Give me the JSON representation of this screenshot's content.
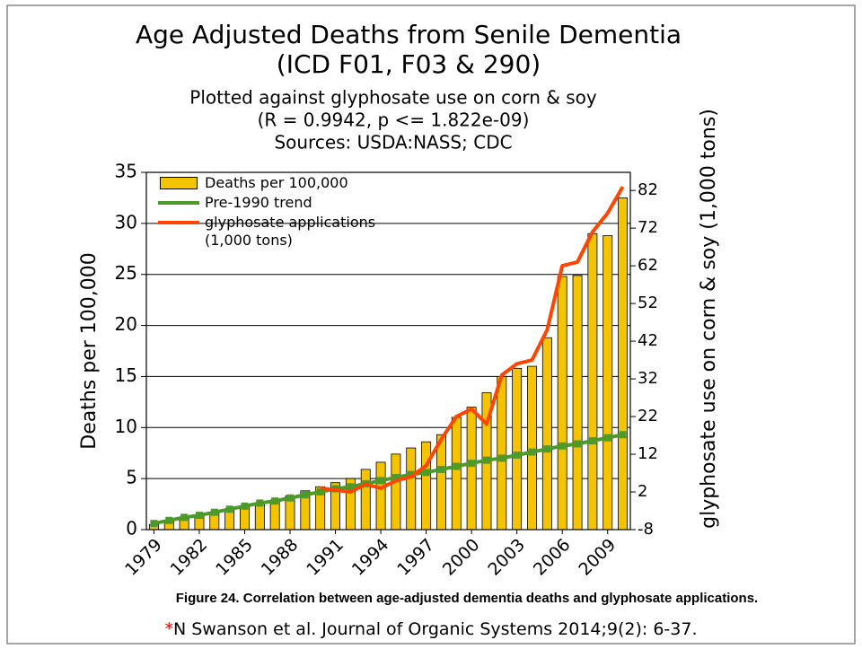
{
  "chart_data": {
    "type": "bar",
    "title": [
      "Age Adjusted Deaths from Senile Dementia",
      "(ICD F01, F03 & 290)"
    ],
    "subtitle": [
      "Plotted against glyphosate use on corn & soy",
      "(R = 0.9942, p <= 1.822e-09)",
      "Sources: USDA:NASS; CDC"
    ],
    "y_label": "Deaths per 100,000",
    "y2_label": "glyphosate use on corn & soy (1,000 tons)",
    "categories": [
      "1979",
      null,
      null,
      "1982",
      null,
      null,
      "1985",
      null,
      null,
      "1988",
      null,
      null,
      "1991",
      null,
      null,
      "1994",
      null,
      null,
      "1997",
      null,
      null,
      "2000",
      null,
      null,
      "2003",
      null,
      null,
      "2006",
      null,
      null,
      "2009",
      null
    ],
    "series": [
      {
        "name": "Deaths per 100,000",
        "type": "bar",
        "color": "#f5c400",
        "values": [
          0.5,
          0.8,
          1.1,
          1.4,
          1.7,
          2.0,
          2.3,
          2.6,
          2.9,
          3.3,
          3.8,
          4.2,
          4.6,
          5.0,
          5.9,
          6.6,
          7.4,
          8.0,
          8.6,
          9.3,
          11.0,
          12.0,
          13.4,
          15.0,
          15.8,
          16.0,
          18.8,
          24.8,
          24.9,
          29.0,
          28.8,
          32.5
        ]
      },
      {
        "name": "Pre-1990 trend",
        "type": "line",
        "color": "#4c9a2a",
        "marker": "square",
        "values": [
          0.6,
          0.9,
          1.2,
          1.4,
          1.7,
          2.0,
          2.3,
          2.6,
          2.8,
          3.1,
          3.4,
          3.7,
          4.0,
          4.2,
          4.5,
          4.8,
          5.1,
          5.4,
          5.6,
          5.9,
          6.2,
          6.5,
          6.8,
          7.0,
          7.3,
          7.6,
          7.9,
          8.2,
          8.4,
          8.7,
          9.0,
          9.3
        ]
      },
      {
        "name": "glyphosate applications (1,000 tons)",
        "type": "line",
        "color": "#ff4500",
        "axis": "y2",
        "values": [
          null,
          null,
          null,
          null,
          null,
          null,
          null,
          null,
          null,
          null,
          null,
          3,
          2.5,
          2,
          4,
          3,
          5,
          6,
          9,
          16,
          22,
          24,
          20,
          33,
          36,
          37,
          45,
          62,
          63,
          71,
          76,
          83
        ]
      }
    ],
    "ylim": [
      0,
      35
    ],
    "yticks": [
      0,
      5,
      10,
      15,
      20,
      25,
      30,
      35
    ],
    "y2lim": [
      -8,
      86.8
    ],
    "y2ticks": [
      -8,
      2,
      12,
      22,
      32,
      42,
      52,
      62,
      72,
      82
    ],
    "grid": true,
    "legend": "upper left",
    "caption": "Figure 24. Correlation between age-adjusted dementia deaths and glyphosate applications.",
    "footnote_marker": "*",
    "footnote": "N Swanson et al. Journal of Organic Systems 2014;9(2): 6-37."
  }
}
